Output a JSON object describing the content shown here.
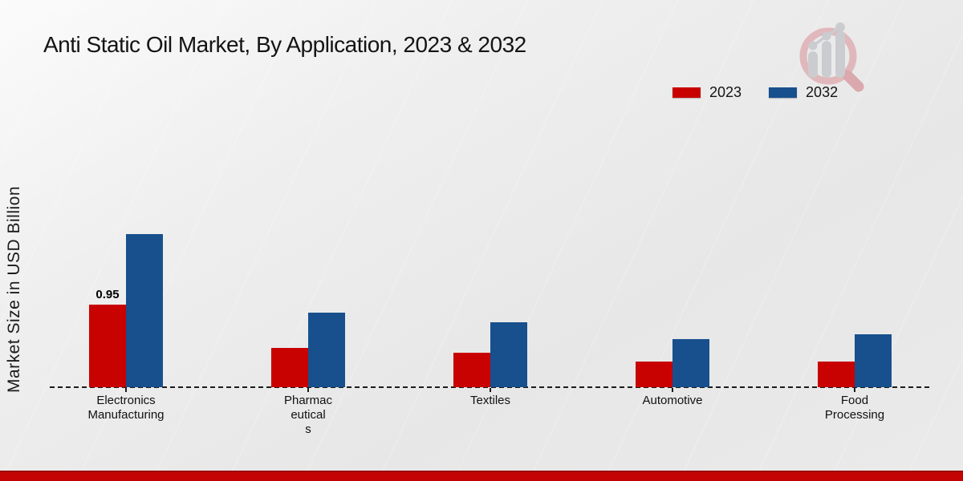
{
  "page": {
    "title": "Anti Static Oil Market, By Application, 2023 & 2032",
    "y_axis_label": "Market Size in USD Billion",
    "footer_bar_color": "#c40404",
    "footer_bar_edge_color": "#9a0b0b"
  },
  "legend": {
    "items": [
      {
        "label": "2023",
        "color": "#c80101"
      },
      {
        "label": "2032",
        "color": "#17508c"
      }
    ]
  },
  "chart_data": {
    "type": "bar",
    "title": "Anti Static Oil Market, By Application, 2023 & 2032",
    "xlabel": "",
    "ylabel": "Market Size in USD Billion",
    "categories": [
      "Electronics Manufacturing",
      "Pharmaceuticals",
      "Textiles",
      "Automotive",
      "Food Processing"
    ],
    "category_label_lines": [
      [
        "Electronics",
        "Manufacturing"
      ],
      [
        "Pharmac",
        "eutical",
        "s"
      ],
      [
        "Textiles"
      ],
      [
        "Automotive"
      ],
      [
        "Food",
        "Processing"
      ]
    ],
    "series": [
      {
        "name": "2023",
        "color": "#c80101",
        "values": [
          0.95,
          0.45,
          0.4,
          0.3,
          0.3
        ]
      },
      {
        "name": "2032",
        "color": "#17508c",
        "values": [
          1.77,
          0.86,
          0.75,
          0.56,
          0.61
        ]
      }
    ],
    "annotations": [
      {
        "category_index": 0,
        "series_index": 0,
        "text": "0.95"
      }
    ],
    "ylim": [
      0,
      2.0
    ],
    "grid": false,
    "baseline_style": "dashed",
    "legend_position": "top-right"
  }
}
